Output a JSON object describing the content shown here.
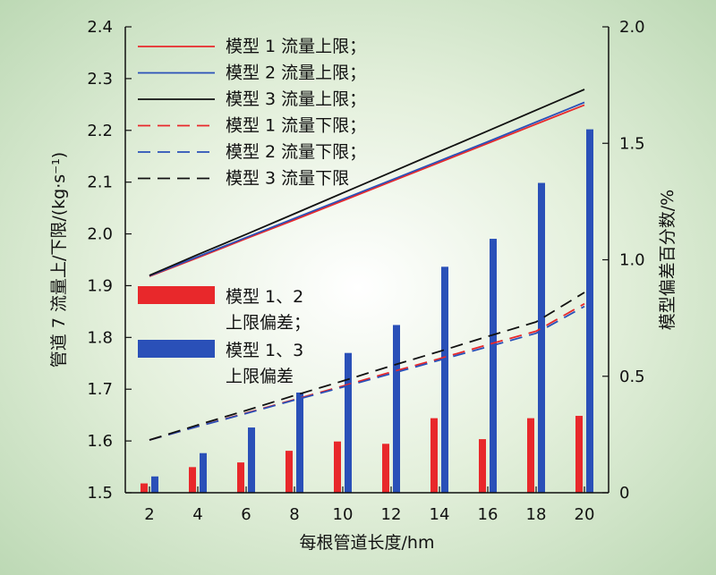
{
  "chart_data": {
    "type": "line",
    "xlabel": "每根管道长度/hm",
    "ylabel_left": "管道 7 流量上/下限/(kg·s⁻¹)",
    "ylabel_right": "模型偏差百分数/%",
    "x_ticks": [
      "2",
      "4",
      "6",
      "8",
      "10",
      "12",
      "14",
      "16",
      "18",
      "20"
    ],
    "y_left_ticks": [
      "1.5",
      "1.6",
      "1.7",
      "1.8",
      "1.9",
      "2.0",
      "2.1",
      "2.2",
      "2.3",
      "2.4"
    ],
    "y_right_ticks": [
      "0",
      "0.5",
      "1.0",
      "1.5",
      "2.0"
    ],
    "xlim": [
      1,
      21
    ],
    "ylim_left": [
      1.5,
      2.4
    ],
    "ylim_right": [
      0,
      2.0
    ],
    "x": [
      2,
      4,
      6,
      8,
      10,
      12,
      14,
      16,
      18,
      20
    ],
    "line_series": [
      {
        "name": "模型 1 流量上限；",
        "color": "#e8282b",
        "dash": false,
        "values": [
          1.918,
          1.954,
          1.991,
          2.027,
          2.064,
          2.101,
          2.138,
          2.175,
          2.212,
          2.249
        ]
      },
      {
        "name": "模型 2 流量上限；",
        "color": "#2a50b8",
        "dash": false,
        "values": [
          1.919,
          1.956,
          1.993,
          2.03,
          2.067,
          2.104,
          2.141,
          2.178,
          2.216,
          2.254
        ]
      },
      {
        "name": "模型 3 流量上限；",
        "color": "#111111",
        "dash": false,
        "values": [
          1.92,
          1.96,
          1.999,
          2.039,
          2.079,
          2.119,
          2.159,
          2.199,
          2.239,
          2.279
        ]
      },
      {
        "name": "模型 1 流量下限；",
        "color": "#e8282b",
        "dash": true,
        "values": [
          1.602,
          1.628,
          1.654,
          1.68,
          1.706,
          1.733,
          1.759,
          1.786,
          1.812,
          1.865
        ]
      },
      {
        "name": "模型 2 流量下限；",
        "color": "#2a50b8",
        "dash": true,
        "values": [
          1.602,
          1.628,
          1.653,
          1.679,
          1.704,
          1.73,
          1.756,
          1.782,
          1.808,
          1.86
        ]
      },
      {
        "name": "模型 3 流量下限",
        "color": "#111111",
        "dash": true,
        "values": [
          1.602,
          1.631,
          1.659,
          1.688,
          1.716,
          1.745,
          1.773,
          1.802,
          1.83,
          1.887
        ]
      }
    ],
    "bar_series": [
      {
        "name_lines": [
          "模型 1、2",
          "上限偏差；"
        ],
        "color": "#e8282b",
        "values": [
          0.04,
          0.11,
          0.13,
          0.18,
          0.22,
          0.21,
          0.32,
          0.23,
          0.32,
          0.33
        ]
      },
      {
        "name_lines": [
          "模型 1、3",
          "上限偏差"
        ],
        "color": "#2a50b8",
        "values": [
          0.07,
          0.17,
          0.28,
          0.43,
          0.6,
          0.72,
          0.97,
          1.09,
          1.33,
          1.56
        ]
      }
    ]
  }
}
